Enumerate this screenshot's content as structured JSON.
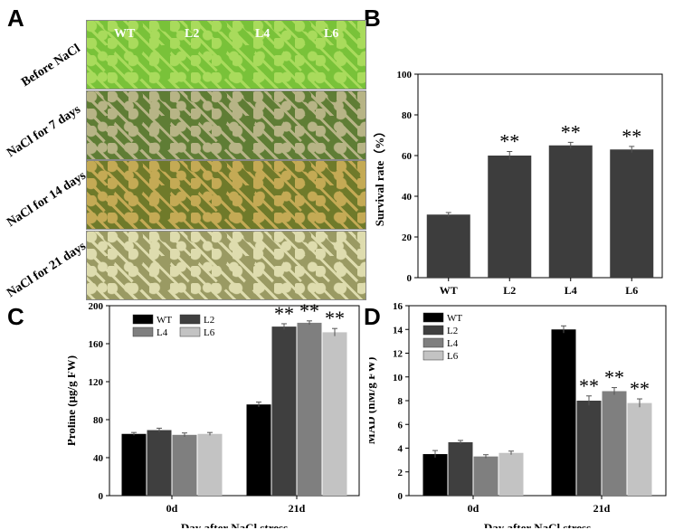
{
  "panels": {
    "a": "A",
    "b": "B",
    "c": "C",
    "d": "D"
  },
  "photo": {
    "columns": [
      "WT",
      "L2",
      "L4",
      "L6"
    ],
    "rows": [
      {
        "label": "Before NaCl",
        "tone": "#79c239",
        "tone2": "#a9db5c"
      },
      {
        "label": "NaCl for 7 days",
        "tone": "#5f7d35",
        "tone2": "#b7b486"
      },
      {
        "label": "NaCl for 14 days",
        "tone": "#6f7a2a",
        "tone2": "#c4aa55"
      },
      {
        "label": "NaCl for 21 days",
        "tone": "#9a9a63",
        "tone2": "#dedcae"
      }
    ]
  },
  "chart_data": [
    {
      "id": "B",
      "type": "bar",
      "categories": [
        "WT",
        "L2",
        "L4",
        "L6"
      ],
      "values": [
        31,
        60,
        65,
        63
      ],
      "errors": [
        1,
        2,
        1.5,
        1.5
      ],
      "significance": [
        "",
        "**",
        "**",
        "**"
      ],
      "ylabel": "Survival rate（%）",
      "xlabel": "",
      "ylim": [
        0,
        100
      ],
      "yticks": [
        0,
        20,
        40,
        60,
        80,
        100
      ],
      "colors": {
        "bar": "#3d3d3d"
      }
    },
    {
      "id": "C",
      "type": "bar",
      "categories": [
        "0d",
        "21d"
      ],
      "series": [
        {
          "name": "WT",
          "values": [
            65,
            96
          ],
          "errors": [
            1.5,
            2.5
          ],
          "color": "#000000",
          "significance": [
            "",
            ""
          ]
        },
        {
          "name": "L2",
          "values": [
            69,
            178
          ],
          "errors": [
            2,
            3
          ],
          "color": "#3f3f3f",
          "significance": [
            "",
            "**"
          ]
        },
        {
          "name": "L4",
          "values": [
            64,
            182
          ],
          "errors": [
            2,
            2
          ],
          "color": "#7f7f7f",
          "significance": [
            "",
            "**"
          ]
        },
        {
          "name": "L6",
          "values": [
            65,
            172
          ],
          "errors": [
            1.5,
            4
          ],
          "color": "#c3c3c3",
          "significance": [
            "",
            "**"
          ]
        }
      ],
      "ylabel": "Proline (μg/g FW)",
      "xlabel": "Day after NaCl stress",
      "ylim": [
        0,
        200
      ],
      "yticks": [
        0,
        40,
        80,
        120,
        160,
        200
      ],
      "legend": "top-left"
    },
    {
      "id": "D",
      "type": "bar",
      "categories": [
        "0d",
        "21d"
      ],
      "series": [
        {
          "name": "WT",
          "values": [
            3.5,
            14.0
          ],
          "errors": [
            0.3,
            0.3
          ],
          "color": "#000000",
          "significance": [
            "",
            ""
          ]
        },
        {
          "name": "L2",
          "values": [
            4.5,
            8.0
          ],
          "errors": [
            0.15,
            0.4
          ],
          "color": "#3f3f3f",
          "significance": [
            "",
            "**"
          ]
        },
        {
          "name": "L4",
          "values": [
            3.3,
            8.8
          ],
          "errors": [
            0.15,
            0.3
          ],
          "color": "#7f7f7f",
          "significance": [
            "",
            "**"
          ]
        },
        {
          "name": "L6",
          "values": [
            3.6,
            7.8
          ],
          "errors": [
            0.15,
            0.35
          ],
          "color": "#c3c3c3",
          "significance": [
            "",
            "**"
          ]
        }
      ],
      "ylabel": "MAD (nM/g FW)",
      "xlabel": "Day after NaCl stress",
      "ylim": [
        0,
        16
      ],
      "yticks": [
        0,
        2,
        4,
        6,
        8,
        10,
        12,
        14,
        16
      ],
      "legend": "top-left"
    }
  ]
}
